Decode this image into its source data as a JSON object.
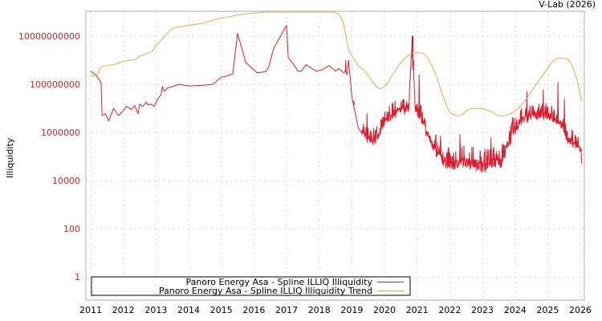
{
  "credit": "V-Lab (2026)",
  "colors": {
    "illiquidity": "#d62030",
    "trend": "#d4b050",
    "ytick": "#d0202a",
    "grid": "#b8b8b8",
    "frame": "#c8c8c8"
  },
  "chart_data": {
    "type": "line",
    "title": "",
    "xlabel": "",
    "ylabel": "Illiquidity",
    "yscale": "log",
    "ylim": [
      0.1,
      200000000000
    ],
    "xlim": [
      2010.9,
      2026.1
    ],
    "x_ticks": [
      "2011",
      "2012",
      "2013",
      "2014",
      "2015",
      "2016",
      "2017",
      "2018",
      "2019",
      "2020",
      "2021",
      "2022",
      "2023",
      "2024",
      "2025",
      "2026"
    ],
    "y_ticks": [
      "10000000000",
      "100000000",
      "1000000",
      "10000",
      "100",
      "1"
    ],
    "y_tick_values": [
      10000000000,
      100000000,
      1000000,
      10000,
      100,
      1
    ],
    "grid": true,
    "legend_position": "bottom-left inside",
    "series": [
      {
        "name": "Panoro Energy Asa - Spline ILLIQ Illiquidity",
        "color": "#d62030",
        "x": [
          2011.0,
          2011.15,
          2011.3,
          2011.32,
          2011.35,
          2011.45,
          2011.55,
          2011.7,
          2011.85,
          2012.0,
          2012.1,
          2012.25,
          2012.35,
          2012.45,
          2012.5,
          2012.6,
          2012.7,
          2012.75,
          2012.85,
          2012.95,
          2013.05,
          2013.15,
          2013.2,
          2013.25,
          2013.35,
          2013.5,
          2013.7,
          2014.0,
          2014.4,
          2014.6,
          2014.75,
          2015.0,
          2015.2,
          2015.25,
          2015.35,
          2015.5,
          2015.75,
          2016.1,
          2016.35,
          2016.45,
          2016.6,
          2017.0,
          2017.05,
          2017.2,
          2017.35,
          2017.45,
          2017.6,
          2017.9,
          2018.1,
          2018.3,
          2018.5,
          2018.6,
          2018.75,
          2018.8,
          2018.85,
          2018.9,
          2019.0,
          2019.2,
          2019.4,
          2019.6,
          2019.8,
          2020.0,
          2020.2,
          2020.4,
          2020.6,
          2020.75,
          2020.85,
          2020.95,
          2021.1,
          2021.3,
          2021.6,
          2021.9,
          2022.1,
          2022.4,
          2022.7,
          2023.0,
          2023.3,
          2023.6,
          2023.8,
          2024.0,
          2024.2,
          2024.4,
          2024.6,
          2024.8,
          2025.0,
          2025.2,
          2025.4,
          2025.6,
          2025.8,
          2026.0,
          2026.05
        ],
        "values": [
          350000000,
          250000000,
          130000000,
          100000000,
          5000000,
          6000000,
          3000000,
          10000000,
          5000000,
          8000000,
          12000000,
          9000000,
          13000000,
          6000000,
          15000000,
          12000000,
          18000000,
          14000000,
          15000000,
          12000000,
          25000000,
          35000000,
          80000000,
          50000000,
          70000000,
          80000000,
          100000000,
          85000000,
          90000000,
          95000000,
          100000000,
          200000000,
          220000000,
          250000000,
          260000000,
          13000000000,
          800000000,
          300000000,
          330000000,
          500000000,
          3000000000,
          28000000000,
          1300000000,
          700000000,
          350000000,
          350000000,
          650000000,
          350000000,
          400000000,
          600000000,
          350000000,
          450000000,
          300000000,
          350000000,
          250000000,
          1000000000,
          30000000,
          1500000,
          600000,
          300000,
          600000,
          2000000,
          4000000,
          6000000,
          7000000,
          8000000,
          4000000000,
          6000000,
          4000000,
          700000,
          100000,
          40000,
          30000,
          50000,
          40000,
          30000,
          40000,
          50000,
          300000,
          1000000,
          2500000,
          3500000,
          4000000,
          4500000,
          4000000,
          3000000,
          2000000,
          400000,
          300000,
          150000,
          50000
        ],
        "spikes": [
          {
            "x": 2018.8,
            "y": 1000000000
          },
          {
            "x": 2019.05,
            "y": 20000000
          },
          {
            "x": 2019.45,
            "y": 6000000
          },
          {
            "x": 2020.25,
            "y": 15000000
          },
          {
            "x": 2020.55,
            "y": 15000000
          },
          {
            "x": 2020.85,
            "y": 400000000
          },
          {
            "x": 2021.05,
            "y": 250000000
          },
          {
            "x": 2021.7,
            "y": 700000
          },
          {
            "x": 2022.3,
            "y": 800000
          },
          {
            "x": 2023.25,
            "y": 600000
          },
          {
            "x": 2024.05,
            "y": 3000000
          },
          {
            "x": 2024.35,
            "y": 50000000
          },
          {
            "x": 2024.85,
            "y": 60000000
          },
          {
            "x": 2025.3,
            "y": 120000000
          },
          {
            "x": 2025.5,
            "y": 25000000
          }
        ]
      },
      {
        "name": "Panoro Energy Asa - Spline ILLIQ Illiquidity Trend",
        "color": "#d4b050",
        "x": [
          2011.0,
          2011.1,
          2011.2,
          2011.3,
          2011.5,
          2011.8,
          2012.0,
          2012.2,
          2012.4,
          2012.5,
          2012.7,
          2012.9,
          2013.0,
          2013.2,
          2013.5,
          2013.8,
          2014.0,
          2014.3,
          2014.6,
          2015.0,
          2015.3,
          2015.6,
          2016.0,
          2016.4,
          2017.0,
          2017.5,
          2018.0,
          2018.4,
          2018.6,
          2018.75,
          2018.9,
          2019.0,
          2019.2,
          2019.4,
          2019.6,
          2019.8,
          2020.0,
          2020.2,
          2020.5,
          2020.8,
          2021.0,
          2021.2,
          2021.4,
          2021.6,
          2021.8,
          2022.0,
          2022.3,
          2022.6,
          2022.9,
          2023.2,
          2023.5,
          2023.8,
          2024.0,
          2024.3,
          2024.6,
          2024.9,
          2025.2,
          2025.5,
          2025.7,
          2025.9,
          2026.05
        ],
        "values": [
          230000000,
          230000000,
          250000000,
          500000000,
          600000000,
          700000000,
          900000000,
          1000000000,
          1100000000,
          1500000000,
          1800000000,
          2500000000,
          4000000000,
          8000000000,
          20000000000,
          25000000000,
          28000000000,
          32000000000,
          40000000000,
          55000000000,
          65000000000,
          80000000000,
          90000000000,
          100000000000,
          100000000000,
          110000000000,
          110000000000,
          100000000000,
          80000000000,
          30000000000,
          3000000000,
          1500000000,
          600000000,
          350000000,
          150000000,
          70000000,
          80000000,
          200000000,
          800000000,
          1800000000,
          2000000000,
          1800000000,
          800000000,
          200000000,
          30000000,
          7000000,
          5000000,
          9000000,
          10000000,
          8000000,
          5000000,
          5500000,
          8000000,
          20000000,
          80000000,
          300000000,
          1000000000,
          1200000000,
          800000000,
          150000000,
          20000000
        ]
      }
    ]
  },
  "legend": {
    "items": [
      {
        "label": "Panoro Energy Asa - Spline ILLIQ Illiquidity",
        "color": "#d62030"
      },
      {
        "label": "Panoro Energy Asa - Spline ILLIQ Illiquidity Trend",
        "color": "#d4b050"
      }
    ]
  }
}
